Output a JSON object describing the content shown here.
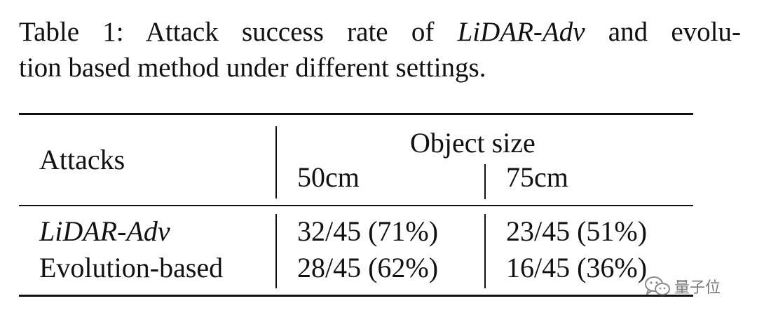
{
  "caption": {
    "line1_prefix": "Table 1: Attack success rate of ",
    "line1_em": "LiDAR-Adv",
    "line1_suffix": " and evolu-",
    "line2": "tion based method under different settings."
  },
  "table": {
    "row_header": "Attacks",
    "group_header": "Object size",
    "columns": [
      "50cm",
      "75cm"
    ],
    "rows": [
      {
        "method": "LiDAR-Adv",
        "italic": true,
        "values": [
          "32/45 (71%)",
          "23/45 (51%)"
        ]
      },
      {
        "method": "Evolution-based",
        "italic": false,
        "values": [
          "28/45 (62%)",
          "16/45 (36%)"
        ]
      }
    ]
  },
  "watermark": {
    "icon": "wechat-icon",
    "text": "量子位"
  }
}
